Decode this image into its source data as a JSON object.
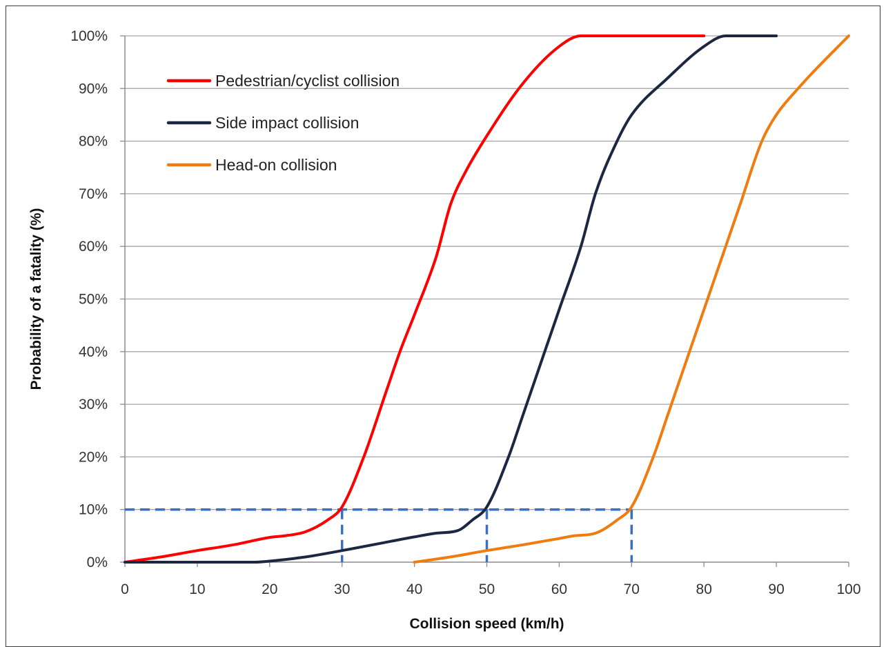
{
  "chart_data": {
    "type": "line",
    "xlabel": "Collision speed (km/h)",
    "ylabel": "Probability of a fatality (%)",
    "xlim": [
      0,
      100
    ],
    "ylim": [
      0,
      100
    ],
    "x_ticks": [
      "0",
      "10",
      "20",
      "30",
      "40",
      "50",
      "60",
      "70",
      "80",
      "90",
      "100"
    ],
    "y_ticks": [
      "0%",
      "10%",
      "20%",
      "30%",
      "40%",
      "50%",
      "60%",
      "70%",
      "80%",
      "90%",
      "100%"
    ],
    "grid": "horizontal",
    "legend_position": "top-left",
    "series": [
      {
        "name": "Pedestrian/cyclist collision",
        "color": "#ff0000",
        "x": [
          0,
          5,
          10,
          15,
          20,
          22,
          25,
          28,
          30,
          33,
          36,
          38,
          40,
          43,
          45,
          47,
          50,
          55,
          60,
          63,
          65,
          70,
          75,
          80
        ],
        "y": [
          0,
          1,
          2.2,
          3.3,
          4.7,
          5,
          5.8,
          8,
          10.5,
          20,
          32,
          40,
          47,
          58,
          68,
          74,
          81,
          91,
          98,
          100,
          100,
          100,
          100,
          100
        ]
      },
      {
        "name": "Side impact collision",
        "color": "#1c2841",
        "x": [
          0,
          10,
          18,
          20,
          25,
          30,
          35,
          40,
          43,
          46,
          48,
          50,
          53,
          55,
          58,
          60,
          63,
          65,
          68,
          70,
          75,
          80,
          83,
          85,
          90
        ],
        "y": [
          0,
          0,
          0,
          0.2,
          1,
          2.2,
          3.5,
          4.8,
          5.5,
          6,
          8,
          10.5,
          20,
          28,
          40,
          48,
          60,
          70,
          80,
          85,
          92,
          98,
          100,
          100,
          100
        ]
      },
      {
        "name": "Head-on collision",
        "color": "#f07c10",
        "x": [
          40,
          45,
          50,
          55,
          60,
          62,
          65,
          68,
          70,
          73,
          75,
          78,
          80,
          83,
          85,
          88,
          90,
          93,
          95,
          100
        ],
        "y": [
          0,
          1,
          2.2,
          3.3,
          4.5,
          5,
          5.5,
          8,
          10.5,
          20,
          28,
          40,
          48,
          60,
          68,
          80,
          85,
          90,
          93,
          100
        ]
      }
    ],
    "reference_lines": [
      {
        "color": "#3a6fc4",
        "x": 30,
        "y": 10
      },
      {
        "color": "#3a6fc4",
        "x": 50,
        "y": 10
      },
      {
        "color": "#3a6fc4",
        "x": 70,
        "y": 10
      }
    ]
  }
}
